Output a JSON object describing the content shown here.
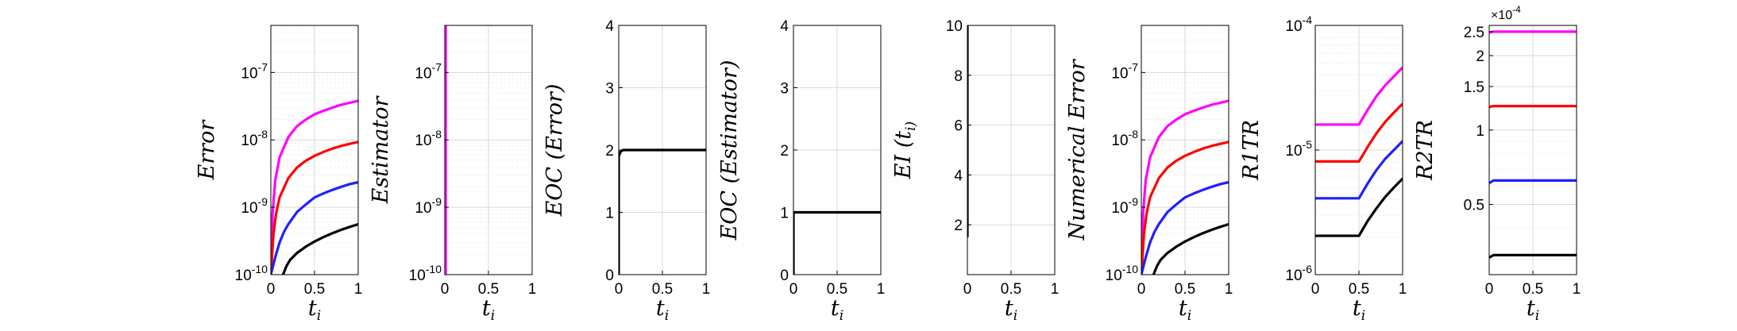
{
  "figure": {
    "colors": {
      "black": "#000000",
      "blue": "#1f1fff",
      "red": "#ff0000",
      "magenta": "#ff00ff",
      "grid": "#d9d9d9",
      "minorgrid": "#ececec"
    }
  },
  "chart_data": [
    {
      "type": "line",
      "ylabel": "Error",
      "xlabel": "t_i",
      "yscale": "log",
      "xlim": [
        0,
        1
      ],
      "ylim": [
        1e-10,
        5e-07
      ],
      "xticks": [
        "0",
        "0.5",
        "1"
      ],
      "yticks": [
        {
          "value": 1e-10,
          "label": "10",
          "exp": "-10"
        },
        {
          "value": 1e-09,
          "label": "10",
          "exp": "-9"
        },
        {
          "value": 1e-08,
          "label": "10",
          "exp": "-8"
        },
        {
          "value": 1e-07,
          "label": "10",
          "exp": "-7"
        }
      ],
      "grid": true,
      "series": [
        {
          "color": "magenta",
          "x": [
            0,
            0.02,
            0.05,
            0.1,
            0.2,
            0.3,
            0.4,
            0.5,
            0.6,
            0.7,
            0.8,
            0.9,
            1.0
          ],
          "y": [
            1e-10,
            8e-10,
            2.5e-09,
            5.5e-09,
            1.1e-08,
            1.6e-08,
            2e-08,
            2.4e-08,
            2.7e-08,
            3e-08,
            3.3e-08,
            3.55e-08,
            3.8e-08
          ]
        },
        {
          "color": "red",
          "x": [
            0,
            0.03,
            0.06,
            0.1,
            0.2,
            0.3,
            0.4,
            0.5,
            0.6,
            0.7,
            0.8,
            0.9,
            1.0
          ],
          "y": [
            1e-10,
            4e-10,
            8e-10,
            1.4e-09,
            2.7e-09,
            3.9e-09,
            4.9e-09,
            5.8e-09,
            6.6e-09,
            7.4e-09,
            8.1e-09,
            8.7e-09,
            9.3e-09
          ]
        },
        {
          "color": "blue",
          "x": [
            0,
            0.05,
            0.1,
            0.15,
            0.2,
            0.3,
            0.4,
            0.5,
            0.6,
            0.7,
            0.8,
            0.9,
            1.0
          ],
          "y": [
            1e-10,
            1.8e-10,
            3e-10,
            4.3e-10,
            5.6e-10,
            8.5e-10,
            1.1e-09,
            1.4e-09,
            1.6e-09,
            1.8e-09,
            2e-09,
            2.2e-09,
            2.35e-09
          ]
        },
        {
          "color": "black",
          "x": [
            0.14,
            0.18,
            0.22,
            0.3,
            0.4,
            0.5,
            0.6,
            0.7,
            0.8,
            0.9,
            1.0
          ],
          "y": [
            1e-10,
            1.35e-10,
            1.65e-10,
            2.1e-10,
            2.6e-10,
            3.1e-10,
            3.6e-10,
            4.1e-10,
            4.6e-10,
            5.1e-10,
            5.6e-10
          ]
        }
      ]
    },
    {
      "type": "line",
      "ylabel": "Estimator",
      "xlabel": "t_i",
      "yscale": "log",
      "xlim": [
        0,
        1
      ],
      "ylim": [
        1e-10,
        5e-07
      ],
      "xticks": [
        "0",
        "0.5",
        "1"
      ],
      "yticks": [
        {
          "value": 1e-10,
          "label": "10",
          "exp": "-10"
        },
        {
          "value": 1e-09,
          "label": "10",
          "exp": "-9"
        },
        {
          "value": 1e-08,
          "label": "10",
          "exp": "-8"
        },
        {
          "value": 1e-07,
          "label": "10",
          "exp": "-7"
        }
      ],
      "grid": true,
      "series": [
        {
          "color": "black",
          "x": [
            0.0,
            0.0
          ],
          "y": [
            1e-10,
            5e-07
          ]
        },
        {
          "color": "magenta",
          "x": [
            0.01,
            0.01
          ],
          "y": [
            1e-10,
            5e-07
          ]
        }
      ]
    },
    {
      "type": "line",
      "ylabel": "EOC (Error)",
      "xlabel": "t_i",
      "yscale": "linear",
      "xlim": [
        0,
        1
      ],
      "ylim": [
        0,
        4
      ],
      "xticks": [
        "0",
        "0.5",
        "1"
      ],
      "yticks": [
        {
          "value": 0,
          "label": "0"
        },
        {
          "value": 1,
          "label": "1"
        },
        {
          "value": 2,
          "label": "2"
        },
        {
          "value": 3,
          "label": "3"
        },
        {
          "value": 4,
          "label": "4"
        }
      ],
      "grid": true,
      "series": [
        {
          "color": "black",
          "x": [
            0.0,
            0.0,
            0.02,
            0.05,
            1.0
          ],
          "y": [
            0,
            1.9,
            1.97,
            2.0,
            2.0
          ]
        }
      ]
    },
    {
      "type": "line",
      "ylabel": "EOC (Estimator)",
      "xlabel": "t_i",
      "yscale": "linear",
      "xlim": [
        0,
        1
      ],
      "ylim": [
        0,
        4
      ],
      "xticks": [
        "0",
        "0.5",
        "1"
      ],
      "yticks": [
        {
          "value": 0,
          "label": "0"
        },
        {
          "value": 1,
          "label": "1"
        },
        {
          "value": 2,
          "label": "2"
        },
        {
          "value": 3,
          "label": "3"
        },
        {
          "value": 4,
          "label": "4"
        }
      ],
      "grid": true,
      "series": [
        {
          "color": "black",
          "x": [
            0.0,
            0.0,
            0.03,
            1.0
          ],
          "y": [
            0,
            1.0,
            1.0,
            1.0
          ]
        }
      ]
    },
    {
      "type": "line",
      "ylabel": "EI (t_i)",
      "xlabel": "t_i",
      "yscale": "linear",
      "xlim": [
        0,
        1
      ],
      "ylim": [
        0,
        10
      ],
      "xticks": [
        "0",
        "0.5",
        "1"
      ],
      "yticks": [
        {
          "value": 2,
          "label": "2"
        },
        {
          "value": 4,
          "label": "4"
        },
        {
          "value": 6,
          "label": "6"
        },
        {
          "value": 8,
          "label": "8"
        },
        {
          "value": 10,
          "label": "10"
        }
      ],
      "grid": true,
      "series": [
        {
          "color": "black",
          "x": [
            0.0,
            0.0
          ],
          "y": [
            1.5,
            10
          ]
        }
      ]
    },
    {
      "type": "line",
      "ylabel": "Numerical Error",
      "xlabel": "t_i",
      "yscale": "log",
      "xlim": [
        0,
        1
      ],
      "ylim": [
        1e-10,
        5e-07
      ],
      "xticks": [
        "0",
        "0.5",
        "1"
      ],
      "yticks": [
        {
          "value": 1e-10,
          "label": "10",
          "exp": "-10"
        },
        {
          "value": 1e-09,
          "label": "10",
          "exp": "-9"
        },
        {
          "value": 1e-08,
          "label": "10",
          "exp": "-8"
        },
        {
          "value": 1e-07,
          "label": "10",
          "exp": "-7"
        }
      ],
      "grid": true,
      "series": [
        {
          "color": "magenta",
          "x": [
            0,
            0.02,
            0.05,
            0.1,
            0.2,
            0.3,
            0.4,
            0.5,
            0.6,
            0.7,
            0.8,
            0.9,
            1.0
          ],
          "y": [
            1e-10,
            8e-10,
            2.5e-09,
            5.5e-09,
            1.1e-08,
            1.6e-08,
            2e-08,
            2.4e-08,
            2.7e-08,
            3e-08,
            3.3e-08,
            3.55e-08,
            3.8e-08
          ]
        },
        {
          "color": "red",
          "x": [
            0,
            0.03,
            0.06,
            0.1,
            0.2,
            0.3,
            0.4,
            0.5,
            0.6,
            0.7,
            0.8,
            0.9,
            1.0
          ],
          "y": [
            1e-10,
            4e-10,
            8e-10,
            1.4e-09,
            2.7e-09,
            3.9e-09,
            4.9e-09,
            5.8e-09,
            6.6e-09,
            7.4e-09,
            8.1e-09,
            8.7e-09,
            9.3e-09
          ]
        },
        {
          "color": "blue",
          "x": [
            0,
            0.05,
            0.1,
            0.15,
            0.2,
            0.3,
            0.4,
            0.5,
            0.6,
            0.7,
            0.8,
            0.9,
            1.0
          ],
          "y": [
            1e-10,
            1.8e-10,
            3e-10,
            4.3e-10,
            5.6e-10,
            8.5e-10,
            1.1e-09,
            1.4e-09,
            1.6e-09,
            1.8e-09,
            2e-09,
            2.2e-09,
            2.35e-09
          ]
        },
        {
          "color": "black",
          "x": [
            0.14,
            0.18,
            0.22,
            0.3,
            0.4,
            0.5,
            0.6,
            0.7,
            0.8,
            0.9,
            1.0
          ],
          "y": [
            1e-10,
            1.35e-10,
            1.65e-10,
            2.1e-10,
            2.6e-10,
            3.1e-10,
            3.6e-10,
            4.1e-10,
            4.6e-10,
            5.1e-10,
            5.6e-10
          ]
        }
      ]
    },
    {
      "type": "line",
      "ylabel": "R1TR",
      "xlabel": "t_i",
      "yscale": "log",
      "xlim": [
        0,
        1
      ],
      "ylim": [
        1e-06,
        0.0001
      ],
      "xticks": [
        "0",
        "0.5",
        "1"
      ],
      "yticks": [
        {
          "value": 1e-06,
          "label": "10",
          "exp": "-6"
        },
        {
          "value": 1e-05,
          "label": "10",
          "exp": "-5"
        },
        {
          "value": 0.0001,
          "label": "10",
          "exp": "-4"
        }
      ],
      "grid": true,
      "series": [
        {
          "color": "magenta",
          "x": [
            0,
            0.5,
            0.6,
            0.7,
            0.8,
            0.9,
            1.0
          ],
          "y": [
            1.6e-05,
            1.6e-05,
            2.1e-05,
            2.7e-05,
            3.3e-05,
            3.9e-05,
            4.6e-05
          ]
        },
        {
          "color": "red",
          "x": [
            0,
            0.5,
            0.6,
            0.7,
            0.8,
            0.9,
            1.0
          ],
          "y": [
            8.1e-06,
            8.1e-06,
            1.06e-05,
            1.36e-05,
            1.68e-05,
            2e-05,
            2.35e-05
          ]
        },
        {
          "color": "blue",
          "x": [
            0,
            0.5,
            0.6,
            0.7,
            0.8,
            0.9,
            1.0
          ],
          "y": [
            4.1e-06,
            4.1e-06,
            5.4e-06,
            6.9e-06,
            8.5e-06,
            1e-05,
            1.18e-05
          ]
        },
        {
          "color": "black",
          "x": [
            0,
            0.5,
            0.6,
            0.7,
            0.8,
            0.9,
            1.0
          ],
          "y": [
            2.05e-06,
            2.05e-06,
            2.7e-06,
            3.4e-06,
            4.2e-06,
            5e-06,
            5.9e-06
          ]
        }
      ]
    },
    {
      "type": "line",
      "ylabel": "R2TR",
      "xlabel": "t_i",
      "yscale": "log",
      "xlim": [
        0,
        1
      ],
      "ylim": [
        2.6e-05,
        0.000265
      ],
      "multiplier": {
        "base": "×10",
        "exp": "-4"
      },
      "xticks": [
        "0",
        "0.5",
        "1"
      ],
      "yticks": [
        {
          "value": 5e-05,
          "label": "0.5"
        },
        {
          "value": 0.0001,
          "label": "1"
        },
        {
          "value": 0.00015,
          "label": "1.5"
        },
        {
          "value": 0.0002,
          "label": "2"
        },
        {
          "value": 0.00025,
          "label": "2.5"
        }
      ],
      "grid": true,
      "series": [
        {
          "color": "magenta",
          "x": [
            0,
            0.05,
            1.0
          ],
          "y": [
            0.000248,
            0.00025,
            0.00025
          ]
        },
        {
          "color": "red",
          "x": [
            0,
            0.05,
            1.0
          ],
          "y": [
            0.000124,
            0.000125,
            0.000125
          ]
        },
        {
          "color": "blue",
          "x": [
            0,
            0.05,
            1.0
          ],
          "y": [
            6.1e-05,
            6.25e-05,
            6.25e-05
          ]
        },
        {
          "color": "black",
          "x": [
            0,
            0.05,
            1.0
          ],
          "y": [
            3.05e-05,
            3.12e-05,
            3.12e-05
          ]
        }
      ]
    }
  ]
}
